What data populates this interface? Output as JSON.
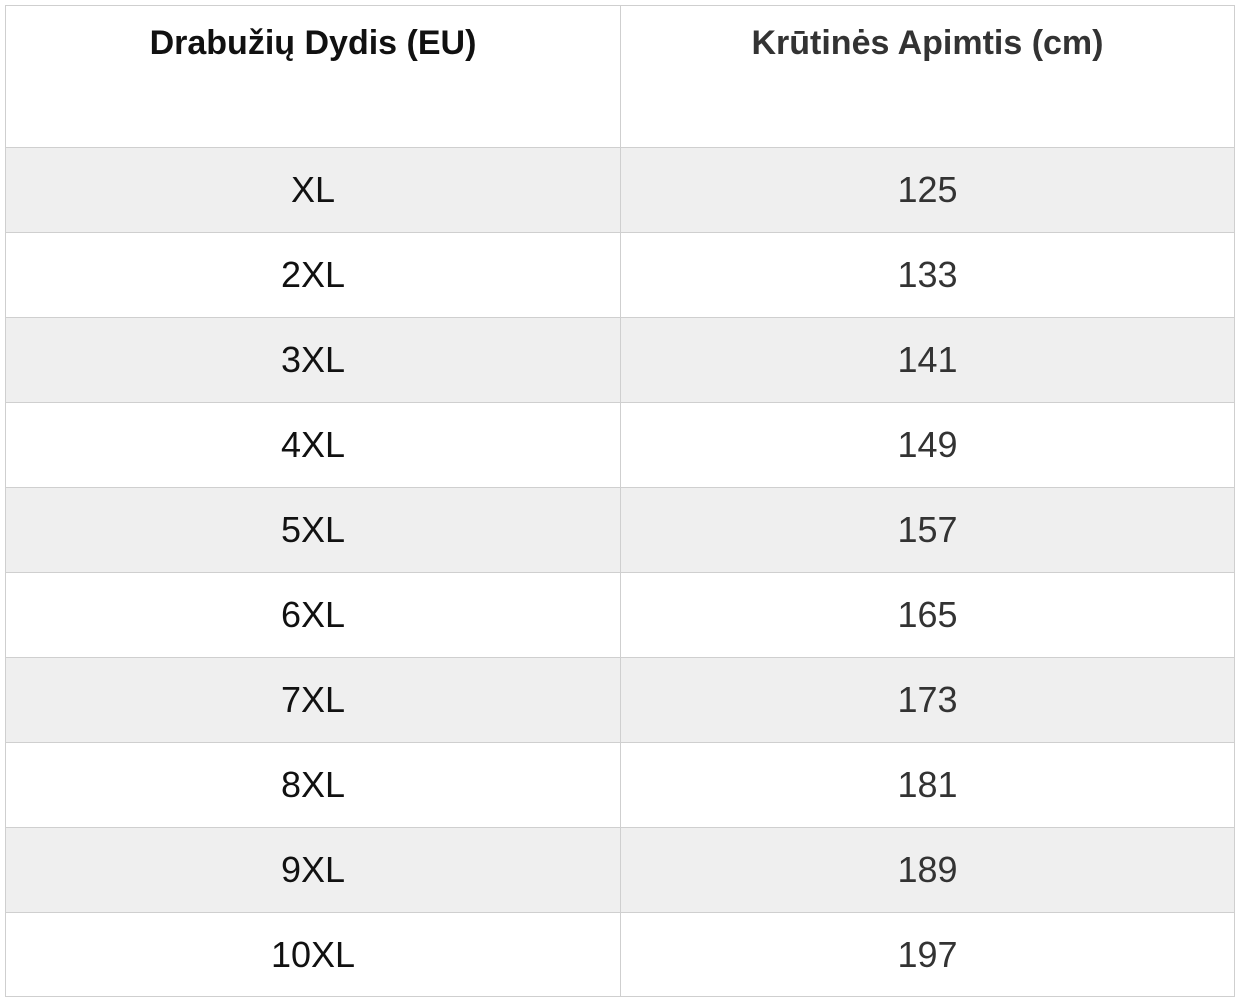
{
  "table": {
    "header": [
      "Drabužių Dydis (EU)",
      "Krūtinės Apimtis (cm)"
    ],
    "rows": [
      [
        "XL",
        125
      ],
      [
        "2XL",
        133
      ],
      [
        "3XL",
        141
      ],
      [
        "4XL",
        149
      ],
      [
        "5XL",
        157
      ],
      [
        "6XL",
        165
      ],
      [
        "7XL",
        173
      ],
      [
        "8XL",
        181
      ],
      [
        "9XL",
        189
      ],
      [
        "10XL",
        197
      ]
    ]
  }
}
